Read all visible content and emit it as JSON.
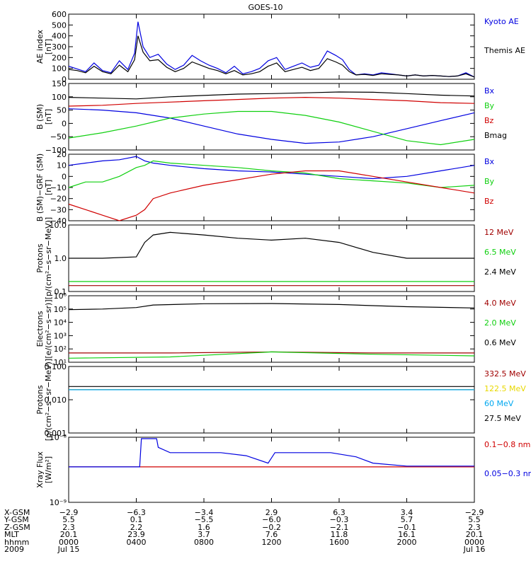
{
  "colors": {
    "black": "#000000",
    "blue": "#0000e0",
    "red": "#d00000",
    "green": "#10d010",
    "darkred": "#a00000",
    "yellow": "#e8d800",
    "cyan": "#00a8f0"
  },
  "chart_data": {
    "title": "GOES-10",
    "panels": [
      {
        "type": "line",
        "ylabel": [
          "AE index",
          "[nT]"
        ],
        "scale": "linear",
        "ylim": [
          0,
          600
        ],
        "yticks": [
          {
            "v": 0,
            "t": "0"
          },
          {
            "v": 100,
            "t": "100"
          },
          {
            "v": 200,
            "t": "200"
          },
          {
            "v": 300,
            "t": "300"
          },
          {
            "v": 400,
            "t": "400"
          },
          {
            "v": 500,
            "t": "500"
          },
          {
            "v": 600,
            "t": "600"
          }
        ],
        "series": [
          {
            "name": "Kyoto AE",
            "color": "blue",
            "x": [
              0,
              0.5,
              1,
              1.5,
              2,
              2.5,
              3,
              3.5,
              3.9,
              4.1,
              4.4,
              4.8,
              5.3,
              5.8,
              6.3,
              6.8,
              7.3,
              7.8,
              8.3,
              8.8,
              9.3,
              9.8,
              10.3,
              10.8,
              11.3,
              11.8,
              12.3,
              12.8,
              13.3,
              13.8,
              14.3,
              14.8,
              15.3,
              15.8,
              16.2,
              16.6,
              17,
              17.5,
              18,
              18.5,
              19,
              19.5,
              20,
              20.5,
              21,
              21.5,
              22,
              22.5,
              23,
              23.5,
              24
            ],
            "y": [
              120,
              95,
              70,
              150,
              80,
              60,
              170,
              90,
              240,
              530,
              300,
              200,
              230,
              140,
              90,
              130,
              220,
              170,
              130,
              100,
              60,
              120,
              50,
              70,
              100,
              170,
              200,
              90,
              120,
              150,
              110,
              130,
              260,
              220,
              180,
              90,
              40,
              50,
              40,
              60,
              50,
              40,
              30,
              40,
              30,
              35,
              30,
              25,
              30,
              60,
              20
            ]
          },
          {
            "name": "Themis AE",
            "color": "black",
            "x": [
              0,
              0.5,
              1,
              1.5,
              2,
              2.5,
              3,
              3.5,
              3.9,
              4.1,
              4.4,
              4.8,
              5.3,
              5.8,
              6.3,
              6.8,
              7.3,
              7.8,
              8.3,
              8.8,
              9.3,
              9.8,
              10.3,
              10.8,
              11.3,
              11.8,
              12.3,
              12.8,
              13.3,
              13.8,
              14.3,
              14.8,
              15.3,
              15.8,
              16.2,
              16.6,
              17,
              17.5,
              18,
              18.5,
              19,
              19.5,
              20,
              20.5,
              21,
              21.5,
              22,
              22.5,
              23,
              23.5,
              24
            ],
            "y": [
              90,
              80,
              60,
              120,
              70,
              50,
              130,
              70,
              180,
              400,
              250,
              170,
              180,
              110,
              70,
              100,
              160,
              130,
              100,
              80,
              50,
              80,
              40,
              50,
              70,
              120,
              150,
              70,
              90,
              110,
              80,
              100,
              190,
              160,
              130,
              70,
              40,
              45,
              35,
              50,
              45,
              40,
              30,
              40,
              30,
              35,
              30,
              25,
              30,
              50,
              20
            ]
          }
        ]
      },
      {
        "type": "line",
        "ylabel": [
          "B (SM)",
          "[nT]"
        ],
        "scale": "linear",
        "ylim": [
          -100,
          150
        ],
        "yticks": [
          {
            "v": -100,
            "t": "−100"
          },
          {
            "v": -50,
            "t": "−50"
          },
          {
            "v": 0,
            "t": "0"
          },
          {
            "v": 50,
            "t": "50"
          },
          {
            "v": 100,
            "t": "100"
          },
          {
            "v": 150,
            "t": "150"
          }
        ],
        "series": [
          {
            "name": "Bx",
            "color": "blue",
            "x": [
              0,
              2,
              4,
              6,
              8,
              10,
              12,
              14,
              16,
              18,
              20,
              22,
              24
            ],
            "y": [
              55,
              50,
              40,
              20,
              -10,
              -40,
              -60,
              -75,
              -70,
              -50,
              -20,
              10,
              40
            ]
          },
          {
            "name": "By",
            "color": "green",
            "x": [
              0,
              2,
              4,
              6,
              8,
              10,
              12,
              14,
              16,
              18,
              20,
              22,
              24
            ],
            "y": [
              -55,
              -35,
              -10,
              20,
              35,
              45,
              45,
              30,
              5,
              -30,
              -65,
              -80,
              -60
            ]
          },
          {
            "name": "Bz",
            "color": "red",
            "x": [
              0,
              2,
              4,
              6,
              8,
              10,
              12,
              14,
              16,
              18,
              20,
              22,
              24
            ],
            "y": [
              65,
              68,
              75,
              80,
              85,
              90,
              95,
              98,
              95,
              90,
              85,
              78,
              75
            ]
          },
          {
            "name": "Bmag",
            "color": "black",
            "x": [
              0,
              2,
              4,
              6,
              8,
              10,
              12,
              14,
              16,
              18,
              20,
              22,
              24
            ],
            "y": [
              98,
              95,
              92,
              100,
              105,
              110,
              112,
              115,
              118,
              117,
              112,
              106,
              103
            ]
          }
        ]
      },
      {
        "type": "line",
        "ylabel": [
          "B (SM)−GRF (SM)",
          "[nT]"
        ],
        "scale": "linear",
        "ylim": [
          -40,
          20
        ],
        "yticks": [
          {
            "v": -40,
            "t": "−40"
          },
          {
            "v": -30,
            "t": "−30"
          },
          {
            "v": -20,
            "t": "−20"
          },
          {
            "v": -10,
            "t": "−10"
          },
          {
            "v": 0,
            "t": "0"
          },
          {
            "v": 10,
            "t": "10"
          },
          {
            "v": 20,
            "t": "20"
          }
        ],
        "series": [
          {
            "name": "Bx",
            "color": "blue",
            "x": [
              0,
              1,
              2,
              3,
              4,
              4.5,
              5,
              6,
              8,
              10,
              12,
              14,
              16,
              18,
              20,
              22,
              24
            ],
            "y": [
              10,
              12,
              14,
              15,
              18,
              14,
              12,
              10,
              7,
              5,
              4,
              2,
              0,
              -2,
              0,
              5,
              10
            ]
          },
          {
            "name": "By",
            "color": "green",
            "x": [
              0,
              1,
              2,
              3,
              4,
              4.5,
              5,
              6,
              8,
              10,
              12,
              14,
              16,
              18,
              20,
              22,
              24
            ],
            "y": [
              -10,
              -5,
              -5,
              0,
              8,
              10,
              14,
              12,
              10,
              8,
              5,
              3,
              -2,
              -4,
              -6,
              -10,
              -8
            ]
          },
          {
            "name": "Bz",
            "color": "red",
            "x": [
              0,
              1,
              2,
              3,
              4,
              4.5,
              5,
              6,
              8,
              10,
              12,
              14,
              16,
              18,
              20,
              22,
              24
            ],
            "y": [
              -25,
              -30,
              -35,
              -40,
              -35,
              -30,
              -20,
              -15,
              -8,
              -3,
              2,
              5,
              5,
              0,
              -5,
              -10,
              -15
            ]
          }
        ]
      },
      {
        "type": "line",
        "ylabel": [
          "Protons",
          "[p/(cm²−s−sr−MeV)]"
        ],
        "scale": "log",
        "ylim": [
          0.1,
          10
        ],
        "yticks": [
          {
            "v": 0.1,
            "t": "0.1"
          },
          {
            "v": 1,
            "t": "1.0"
          },
          {
            "v": 10,
            "t": "10.0"
          }
        ],
        "series": [
          {
            "name": "12 MeV",
            "color": "darkred",
            "x": [
              0,
              3,
              6,
              9,
              12,
              15,
              18,
              21,
              24
            ],
            "y": [
              0.15,
              0.15,
              0.15,
              0.15,
              0.15,
              0.15,
              0.15,
              0.15,
              0.15
            ]
          },
          {
            "name": "6.5 MeV",
            "color": "green",
            "x": [
              0,
              3,
              6,
              9,
              12,
              15,
              18,
              21,
              24
            ],
            "y": [
              0.2,
              0.2,
              0.2,
              0.2,
              0.2,
              0.2,
              0.2,
              0.2,
              0.2
            ]
          },
          {
            "name": "2.4 MeV",
            "color": "black",
            "x": [
              0,
              2,
              4,
              4.5,
              5,
              6,
              8,
              10,
              12,
              14,
              16,
              18,
              20,
              22,
              24
            ],
            "y": [
              1,
              1,
              1.1,
              3,
              5,
              6,
              5,
              4,
              3.5,
              4,
              3,
              1.5,
              1,
              1,
              1
            ]
          }
        ]
      },
      {
        "type": "line",
        "ylabel": [
          "Electrons",
          "[e/(cm²−s−sr)]"
        ],
        "scale": "log",
        "ylim": [
          10,
          1000000
        ],
        "yticks": [
          {
            "v": 10,
            "t": "10¹"
          },
          {
            "v": 100,
            "t": "10²"
          },
          {
            "v": 1000,
            "t": "10³"
          },
          {
            "v": 10000,
            "t": "10⁴"
          },
          {
            "v": 100000,
            "t": "10⁵"
          },
          {
            "v": 1000000,
            "t": "10⁶"
          }
        ],
        "series": [
          {
            "name": "4.0 MeV",
            "color": "darkred",
            "x": [
              0,
              6,
              12,
              18,
              24
            ],
            "y": [
              50,
              50,
              60,
              50,
              50
            ]
          },
          {
            "name": "2.0 MeV",
            "color": "green",
            "x": [
              0,
              6,
              12,
              18,
              24
            ],
            "y": [
              20,
              25,
              60,
              40,
              30
            ]
          },
          {
            "name": "0.6 MeV",
            "color": "black",
            "x": [
              0,
              2,
              4,
              5,
              8,
              12,
              16,
              18,
              20,
              24
            ],
            "y": [
              90000,
              100000,
              130000,
              200000,
              250000,
              260000,
              220000,
              180000,
              150000,
              120000
            ]
          }
        ]
      },
      {
        "type": "line",
        "ylabel": [
          "Protons",
          "[p/(cm²−s−sr−MeV)]"
        ],
        "scale": "log",
        "ylim": [
          0.001,
          0.1
        ],
        "yticks": [
          {
            "v": 0.001,
            "t": "0.001"
          },
          {
            "v": 0.01,
            "t": "0.010"
          },
          {
            "v": 0.1,
            "t": "0.100"
          }
        ],
        "series": [
          {
            "name": "332.5 MeV",
            "color": "darkred",
            "x": [
              0,
              24
            ],
            "y": [
              0.02,
              0.02
            ]
          },
          {
            "name": "122.5 MeV",
            "color": "yellow",
            "x": [
              0,
              24
            ],
            "y": [
              0.02,
              0.02
            ]
          },
          {
            "name": "60 MeV",
            "color": "cyan",
            "x": [
              0,
              6,
              12,
              18,
              24
            ],
            "y": [
              0.02,
              0.02,
              0.02,
              0.02,
              0.02
            ]
          },
          {
            "name": "27.5 MeV",
            "color": "black",
            "x": [
              0,
              6,
              12,
              18,
              24
            ],
            "y": [
              0.025,
              0.025,
              0.025,
              0.025,
              0.025
            ]
          }
        ]
      },
      {
        "type": "line",
        "ylabel": [
          "Xray Flux",
          "[W/m²]"
        ],
        "scale": "log",
        "ylim": [
          1e-09,
          1e-08
        ],
        "yticks": [
          {
            "v": 1e-09,
            "t": "10⁻⁹"
          },
          {
            "v": 1e-08,
            "t": "10⁻⁸"
          }
        ],
        "series": [
          {
            "name": "0.1−0.8 nm",
            "color": "red",
            "x": [
              0,
              24
            ],
            "y": [
              3.5e-09,
              3.5e-09
            ]
          },
          {
            "name": "0.05−0.3 nm",
            "color": "blue",
            "x": [
              0,
              4.2,
              4.3,
              5.2,
              5.3,
              6.0,
              9,
              10.5,
              11.8,
              12.2,
              15.5,
              17,
              18,
              20,
              24
            ],
            "y": [
              3.5e-09,
              3.5e-09,
              9.5e-09,
              9.5e-09,
              7e-09,
              5.8e-09,
              5.8e-09,
              5.2e-09,
              4e-09,
              5.8e-09,
              5.8e-09,
              5e-09,
              4e-09,
              3.6e-09,
              3.6e-09
            ]
          }
        ]
      }
    ],
    "xticks": [
      0,
      4,
      8,
      12,
      16,
      20,
      24
    ],
    "xlabels": [
      {
        "name": "X-GSM",
        "values": [
          "−2.9",
          "−6.3",
          "−3.4",
          "2.9",
          "6.3",
          "3.4",
          "−2.9"
        ]
      },
      {
        "name": "Y-GSM",
        "values": [
          "5.5",
          "0.1",
          "−5.5",
          "−6.0",
          "−0.3",
          "5.7",
          "5.5"
        ]
      },
      {
        "name": "Z-GSM",
        "values": [
          "2.3",
          "2.2",
          "1.6",
          "−0.2",
          "−2.1",
          "−0.1",
          "2.3"
        ]
      },
      {
        "name": "MLT",
        "values": [
          "20.1",
          "23.9",
          "3.7",
          "7.6",
          "11.8",
          "16.1",
          "20.1"
        ]
      },
      {
        "name": "hhmm",
        "values": [
          "0000",
          "0400",
          "0800",
          "1200",
          "1600",
          "2000",
          "0000"
        ]
      },
      {
        "name": "2009",
        "values": [
          "Jul 15",
          "",
          "",
          "",
          "",
          "",
          "Jul 16"
        ]
      }
    ]
  }
}
